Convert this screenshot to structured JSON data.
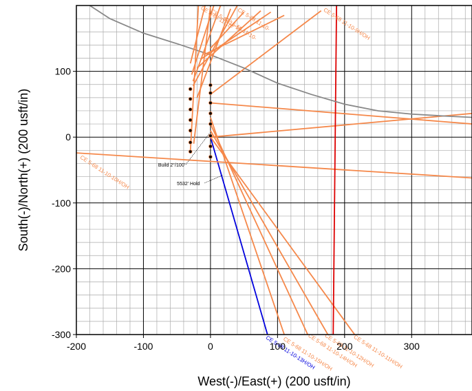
{
  "chart_data": {
    "type": "line",
    "xlabel": "West(-)/East(+) (200 usft/in)",
    "ylabel": "South(-)/North(+) (200 usft/in)",
    "xlim": [
      -200,
      390
    ],
    "ylim": [
      -300,
      200
    ],
    "x_ticks": [
      -200,
      -100,
      0,
      100,
      200,
      300
    ],
    "y_ticks": [
      -300,
      -200,
      -100,
      0,
      100
    ],
    "grid": true,
    "colors": {
      "offset": "#f5884a",
      "subject": "#0000dd",
      "hardline": "#dd0000",
      "boundary": "#888888",
      "grid_major": "#000000",
      "grid_minor": "#aaaaaa"
    },
    "series": [
      {
        "name": "CE 5-68 11-10-13H/OH",
        "color": "#0000dd",
        "x": [
          0,
          85
        ],
        "y": [
          0,
          -300
        ]
      },
      {
        "name": "CE 5-68 11-10-9H/OH",
        "color": "#f5884a",
        "x": [
          0,
          165
        ],
        "y": [
          65,
          192
        ]
      },
      {
        "name": "CE 5-68 11-10-10H/OH",
        "color": "#f5884a",
        "x": [
          -200,
          390
        ],
        "y": [
          -24,
          -62
        ]
      },
      {
        "name": "CE 5-68 11-10-11H/OH",
        "color": "#f5884a",
        "x": [
          0,
          215
        ],
        "y": [
          0,
          -300
        ]
      },
      {
        "name": "CE 5-68 11-10-12H/OH",
        "color": "#f5884a",
        "x": [
          0,
          175
        ],
        "y": [
          10,
          -300
        ]
      },
      {
        "name": "CE 5-68 11-10-14H/OH",
        "color": "#f5884a",
        "x": [
          0,
          145
        ],
        "y": [
          20,
          -300
        ]
      },
      {
        "name": "CE 5-68 11-10-15H/OH",
        "color": "#f5884a",
        "x": [
          0,
          110
        ],
        "y": [
          30,
          -300
        ]
      },
      {
        "name": "",
        "color": "#f5884a",
        "x": [
          0,
          390
        ],
        "y": [
          52,
          20
        ]
      },
      {
        "name": "",
        "color": "#f5884a",
        "x": [
          0,
          390
        ],
        "y": [
          0,
          36
        ]
      },
      {
        "name": "",
        "color": "#dd0000",
        "x": [
          188,
          183
        ],
        "y": [
          200,
          -300
        ]
      },
      {
        "name": "",
        "color": "#888888",
        "x": [
          -180,
          -150,
          -100,
          -50,
          0,
          50,
          100,
          150,
          200,
          250,
          300,
          350,
          390
        ],
        "y": [
          200,
          180,
          158,
          142,
          125,
          105,
          82,
          65,
          50,
          40,
          35,
          32,
          30
        ]
      },
      {
        "name": "",
        "color": "#f5884a",
        "x": [
          -30,
          -8
        ],
        "y": [
          112,
          200
        ]
      },
      {
        "name": "",
        "color": "#f5884a",
        "x": [
          -28,
          5
        ],
        "y": [
          95,
          200
        ]
      },
      {
        "name": "",
        "color": "#f5884a",
        "x": [
          -26,
          15
        ],
        "y": [
          85,
          200
        ]
      },
      {
        "name": "",
        "color": "#f5884a",
        "x": [
          -26,
          40
        ],
        "y": [
          78,
          200
        ]
      },
      {
        "name": "",
        "color": "#f5884a",
        "x": [
          -30,
          -18
        ],
        "y": [
          -22,
          200
        ]
      },
      {
        "name": "",
        "color": "#f5884a",
        "x": [
          -25,
          0
        ],
        "y": [
          -10,
          198
        ]
      },
      {
        "name": "",
        "color": "#f5884a",
        "x": [
          -20,
          30
        ],
        "y": [
          60,
          195
        ]
      },
      {
        "name": "",
        "color": "#f5884a",
        "x": [
          -20,
          75
        ],
        "y": [
          105,
          192
        ]
      },
      {
        "name": "",
        "color": "#f5884a",
        "x": [
          -15,
          90
        ],
        "y": [
          118,
          190
        ]
      },
      {
        "name": "",
        "color": "#f5884a",
        "x": [
          -10,
          110
        ],
        "y": [
          125,
          185
        ]
      },
      {
        "name": "",
        "color": "#f5884a",
        "x": [
          0,
          50
        ],
        "y": [
          135,
          190
        ]
      }
    ],
    "markers": {
      "color": "#000000",
      "points": [
        {
          "x": -30,
          "y": 73
        },
        {
          "x": -30,
          "y": 58
        },
        {
          "x": -30,
          "y": 42
        },
        {
          "x": -30,
          "y": 26
        },
        {
          "x": -30,
          "y": 10
        },
        {
          "x": -30,
          "y": -8
        },
        {
          "x": -30,
          "y": -22
        },
        {
          "x": 0,
          "y": 79
        },
        {
          "x": 0,
          "y": 67
        },
        {
          "x": 0,
          "y": 52
        },
        {
          "x": 0,
          "y": 36
        },
        {
          "x": 0,
          "y": 20
        },
        {
          "x": 0,
          "y": 2
        },
        {
          "x": 0,
          "y": -14
        },
        {
          "x": 0,
          "y": -30
        }
      ]
    },
    "series_labels": [
      {
        "text": "CE 5-68 11-10-9H/OH",
        "color": "#f5884a",
        "x": 168,
        "y": 192,
        "angle": 33
      },
      {
        "text": "CE 5-68 11-10-10H/OH",
        "color": "#f5884a",
        "x": -195,
        "y": -32,
        "angle": 33
      },
      {
        "text": "CE 5-68 11-10-13H/OH",
        "color": "#0000dd",
        "x": 82,
        "y": -306,
        "angle": 33
      },
      {
        "text": "CE 5-68 11-10-15H/OH",
        "color": "#f5884a",
        "x": 108,
        "y": -308,
        "angle": 33
      },
      {
        "text": "CE 5-68 11-10-14H/OH",
        "color": "#f5884a",
        "x": 145,
        "y": -303,
        "angle": 33
      },
      {
        "text": "CE 5-68 11-10-12H/OH",
        "color": "#f5884a",
        "x": 170,
        "y": -303,
        "angle": 33
      },
      {
        "text": "CE 5-68 11-10-11H/OH",
        "color": "#f5884a",
        "x": 213,
        "y": -305,
        "angle": 33
      },
      {
        "text": "CE 5-68 11-10-",
        "color": "#f5884a",
        "x": -15,
        "y": 195,
        "angle": 33
      },
      {
        "text": "CE 5-68 11-10-",
        "color": "#f5884a",
        "x": 0,
        "y": 190,
        "angle": 33
      },
      {
        "text": "CE 5-68 11-10-",
        "color": "#f5884a",
        "x": 20,
        "y": 178,
        "angle": 33
      },
      {
        "text": "CE 5-68 11-10-",
        "color": "#f5884a",
        "x": 40,
        "y": 192,
        "angle": 33
      }
    ],
    "annotations": [
      {
        "text": "Build 2°/100'",
        "x": -78,
        "y": -45,
        "target_x": -2,
        "target_y": 5
      },
      {
        "text": "5532' Hold",
        "x": -50,
        "y": -73,
        "target_x": 18,
        "target_y": -58
      }
    ]
  }
}
